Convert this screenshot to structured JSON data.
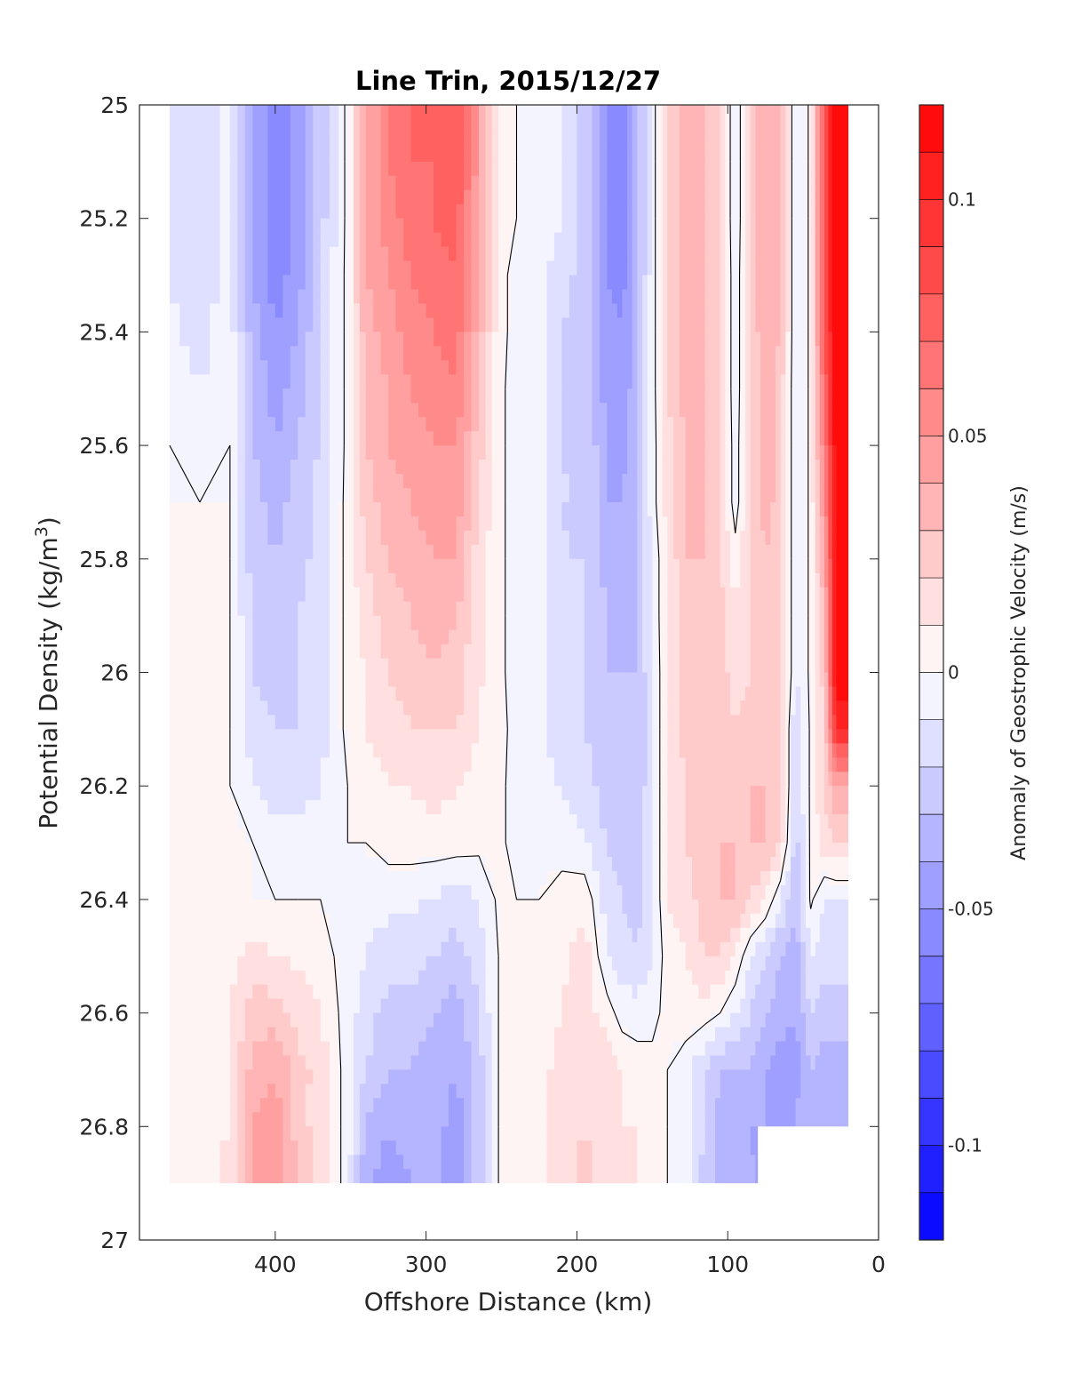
{
  "chart_data": {
    "type": "heatmap",
    "title": "Line Trin, 2015/12/27",
    "xlabel": "Offshore Distance (km)",
    "ylabel_main": "Potential Density (kg/m",
    "ylabel_sup": "3",
    "ylabel_close": ")",
    "colorbar_label": "Anomaly of Geostrophic Velocity (m/s)",
    "xlim": [
      490,
      0
    ],
    "ylim": [
      25,
      27
    ],
    "y_reversed": true,
    "x_ticks": [
      400,
      300,
      200,
      100,
      0
    ],
    "x_tick_labels": [
      "400",
      "300",
      "200",
      "100",
      "0"
    ],
    "y_ticks": [
      25,
      25.2,
      25.4,
      25.6,
      25.8,
      26,
      26.2,
      26.4,
      26.6,
      26.8,
      27
    ],
    "y_tick_labels": [
      "25",
      "25.2",
      "25.4",
      "25.6",
      "25.8",
      "26",
      "26.2",
      "26.4",
      "26.6",
      "26.8",
      "27"
    ],
    "clim": [
      -0.12,
      0.12
    ],
    "colorbar_ticks": [
      0.1,
      0.05,
      0,
      -0.05,
      -0.1
    ],
    "colorbar_tick_labels": [
      "0.1",
      "0.05",
      "0",
      "-0.05",
      "-0.1"
    ],
    "colorbar_levels": 24,
    "zero_contour": true,
    "grid": false,
    "colormap": {
      "negative": "#0000ff",
      "zero": "#ffffff",
      "positive": "#ff0000"
    },
    "x": [
      470,
      450,
      430,
      415,
      400,
      385,
      370,
      352,
      340,
      325,
      310,
      295,
      280,
      265,
      252,
      240,
      225,
      210,
      195,
      180,
      170,
      160,
      150,
      140,
      128,
      115,
      105,
      95,
      85,
      75,
      65,
      55,
      45,
      36,
      28,
      20
    ],
    "y": [
      25,
      25.1,
      25.2,
      25.3,
      25.4,
      25.5,
      25.6,
      25.7,
      25.8,
      25.9,
      26,
      26.1,
      26.2,
      26.3,
      26.4,
      26.5,
      26.6,
      26.7,
      26.8,
      26.9
    ],
    "z": [
      [
        -0.01,
        -0.015,
        -0.005,
        -0.04,
        -0.055,
        -0.045,
        -0.025,
        0.003,
        0.04,
        0.06,
        0.07,
        0.07,
        0.08,
        0.045,
        0.005,
        0.0,
        -0.005,
        -0.01,
        -0.025,
        -0.05,
        -0.055,
        -0.035,
        -0.005,
        0.02,
        0.035,
        0.03,
        0.02,
        -0.01,
        0.02,
        0.04,
        0.03,
        -0.01,
        0.002,
        0.08,
        0.12,
        0.12
      ],
      [
        -0.01,
        -0.02,
        -0.005,
        -0.04,
        -0.055,
        -0.045,
        -0.025,
        0.003,
        0.04,
        0.06,
        0.07,
        0.07,
        0.08,
        0.045,
        0.005,
        0.0,
        -0.005,
        -0.01,
        -0.025,
        -0.05,
        -0.055,
        -0.035,
        -0.005,
        0.02,
        0.035,
        0.03,
        0.02,
        -0.01,
        0.02,
        0.04,
        0.03,
        -0.01,
        0.002,
        0.08,
        0.12,
        0.12
      ],
      [
        -0.01,
        -0.02,
        -0.005,
        -0.04,
        -0.055,
        -0.045,
        -0.025,
        0.003,
        0.04,
        0.055,
        0.065,
        0.07,
        0.075,
        0.04,
        0.005,
        0.0,
        -0.005,
        -0.01,
        -0.025,
        -0.05,
        -0.055,
        -0.035,
        -0.005,
        0.02,
        0.035,
        0.03,
        0.02,
        -0.01,
        0.02,
        0.04,
        0.03,
        -0.01,
        0.002,
        0.08,
        0.12,
        0.12
      ],
      [
        -0.01,
        -0.015,
        -0.005,
        -0.04,
        -0.055,
        -0.045,
        -0.02,
        0.003,
        0.04,
        0.05,
        0.06,
        0.065,
        0.07,
        0.04,
        0.005,
        -0.005,
        -0.008,
        -0.015,
        -0.025,
        -0.05,
        -0.055,
        -0.035,
        -0.005,
        0.02,
        0.035,
        0.03,
        0.02,
        -0.008,
        0.02,
        0.04,
        0.03,
        -0.01,
        0.002,
        0.08,
        0.12,
        0.12
      ],
      [
        -0.008,
        -0.015,
        -0.005,
        -0.035,
        -0.05,
        -0.04,
        -0.02,
        0.003,
        0.035,
        0.045,
        0.055,
        0.06,
        0.065,
        0.035,
        0.005,
        -0.005,
        -0.008,
        -0.02,
        -0.025,
        -0.045,
        -0.05,
        -0.03,
        -0.005,
        0.02,
        0.035,
        0.03,
        0.02,
        -0.008,
        0.02,
        0.04,
        0.03,
        -0.01,
        0.002,
        0.08,
        0.12,
        0.12
      ],
      [
        -0.005,
        -0.01,
        -0.005,
        -0.03,
        -0.045,
        -0.035,
        -0.02,
        0.003,
        0.03,
        0.04,
        0.05,
        0.055,
        0.06,
        0.03,
        0.003,
        -0.005,
        -0.008,
        -0.02,
        -0.025,
        -0.045,
        -0.05,
        -0.03,
        -0.005,
        0.02,
        0.035,
        0.03,
        0.02,
        -0.008,
        0.02,
        0.035,
        0.025,
        -0.01,
        0.002,
        0.07,
        0.12,
        0.12
      ],
      [
        0.0,
        -0.005,
        0.0,
        -0.03,
        -0.04,
        -0.03,
        -0.02,
        0.003,
        0.03,
        0.04,
        0.045,
        0.05,
        0.05,
        0.025,
        0.003,
        -0.005,
        -0.008,
        -0.02,
        -0.02,
        -0.04,
        -0.045,
        -0.03,
        -0.005,
        0.015,
        0.03,
        0.03,
        0.02,
        -0.006,
        0.02,
        0.035,
        0.025,
        -0.01,
        0.002,
        0.06,
        0.12,
        0.12
      ],
      [
        0.0,
        0.0,
        0.0,
        -0.025,
        -0.035,
        -0.025,
        -0.015,
        0.003,
        0.025,
        0.035,
        0.04,
        0.045,
        0.045,
        0.02,
        0.003,
        -0.005,
        -0.008,
        -0.02,
        -0.02,
        -0.04,
        -0.04,
        -0.03,
        -0.005,
        0.015,
        0.03,
        0.03,
        0.02,
        -0.006,
        0.02,
        0.035,
        0.025,
        -0.01,
        0.002,
        0.05,
        0.12,
        0.12
      ],
      [
        0.0,
        0.0,
        0.0,
        -0.025,
        -0.03,
        -0.025,
        -0.015,
        0.003,
        0.02,
        0.03,
        0.035,
        0.04,
        0.04,
        0.015,
        0.003,
        -0.005,
        -0.008,
        -0.02,
        -0.02,
        -0.035,
        -0.04,
        -0.03,
        -0.008,
        0.01,
        0.03,
        0.03,
        0.02,
        0.005,
        0.02,
        0.03,
        0.025,
        -0.01,
        0.002,
        0.04,
        0.12,
        0.12
      ],
      [
        0.0,
        0.0,
        0.0,
        -0.02,
        -0.03,
        -0.02,
        -0.015,
        0.003,
        0.015,
        0.025,
        0.03,
        0.035,
        0.03,
        0.015,
        0.003,
        -0.005,
        -0.008,
        -0.015,
        -0.02,
        -0.03,
        -0.035,
        -0.03,
        -0.008,
        0.01,
        0.025,
        0.03,
        0.025,
        0.01,
        0.02,
        0.03,
        0.025,
        -0.01,
        0.002,
        0.03,
        0.12,
        0.12
      ],
      [
        0.0,
        0.005,
        0.0,
        -0.02,
        -0.025,
        -0.02,
        -0.015,
        0.003,
        0.01,
        0.02,
        0.025,
        0.03,
        0.025,
        0.012,
        0.003,
        -0.005,
        -0.008,
        -0.015,
        -0.02,
        -0.03,
        -0.03,
        -0.03,
        -0.01,
        0.01,
        0.025,
        0.03,
        0.025,
        0.015,
        0.02,
        0.03,
        0.025,
        -0.01,
        0.002,
        0.025,
        0.12,
        0.12
      ],
      [
        0.0,
        0.01,
        0.0,
        -0.015,
        -0.02,
        -0.02,
        -0.015,
        0.003,
        0.01,
        0.015,
        0.02,
        0.02,
        0.02,
        0.01,
        0.003,
        -0.003,
        -0.008,
        -0.015,
        -0.02,
        -0.025,
        -0.03,
        -0.03,
        -0.01,
        0.01,
        0.025,
        0.03,
        0.03,
        0.02,
        0.025,
        0.03,
        0.025,
        -0.02,
        0.002,
        0.02,
        0.1,
        0.1
      ],
      [
        0.0,
        0.01,
        0.0,
        -0.01,
        -0.015,
        -0.015,
        -0.01,
        0.0,
        0.005,
        0.01,
        0.01,
        0.015,
        0.01,
        0.005,
        0.002,
        -0.003,
        -0.008,
        -0.01,
        -0.015,
        -0.025,
        -0.03,
        -0.03,
        -0.01,
        0.01,
        0.02,
        0.025,
        0.03,
        0.025,
        0.03,
        0.03,
        0.025,
        -0.02,
        0.002,
        0.02,
        0.04,
        0.04
      ],
      [
        0.0,
        0.01,
        0.005,
        0.0,
        -0.005,
        -0.005,
        -0.005,
        0.0,
        0.0,
        0.005,
        0.005,
        0.005,
        0.005,
        0.003,
        0.002,
        -0.003,
        -0.003,
        -0.005,
        -0.01,
        -0.02,
        -0.025,
        -0.025,
        -0.01,
        0.01,
        0.02,
        0.025,
        0.03,
        0.03,
        0.03,
        0.03,
        0.02,
        -0.025,
        0.002,
        0.015,
        0.02,
        0.02
      ],
      [
        0.0,
        0.008,
        0.005,
        0.0,
        0.0,
        0.0,
        0.0,
        -0.003,
        -0.005,
        -0.008,
        -0.008,
        -0.01,
        -0.015,
        -0.01,
        0.002,
        0.0,
        0.0,
        0.005,
        0.008,
        -0.015,
        -0.02,
        -0.025,
        -0.01,
        0.01,
        0.015,
        0.025,
        0.03,
        0.03,
        0.02,
        0.01,
        -0.01,
        -0.03,
        0.002,
        -0.01,
        -0.01,
        -0.01
      ],
      [
        0.0,
        0.005,
        0.005,
        0.015,
        0.01,
        0.008,
        0.005,
        -0.005,
        -0.01,
        -0.015,
        -0.015,
        -0.02,
        -0.025,
        -0.015,
        0.0,
        0.005,
        0.005,
        0.008,
        0.015,
        -0.01,
        -0.015,
        -0.02,
        -0.01,
        0.005,
        0.01,
        0.02,
        0.02,
        0.01,
        -0.01,
        -0.02,
        -0.03,
        -0.035,
        -0.01,
        -0.015,
        -0.015,
        -0.015
      ],
      [
        0.0,
        0.005,
        0.01,
        0.025,
        0.025,
        0.015,
        0.01,
        -0.005,
        -0.015,
        -0.025,
        -0.025,
        -0.03,
        -0.035,
        -0.02,
        0.0,
        0.005,
        0.005,
        0.01,
        0.015,
        0.005,
        -0.005,
        -0.005,
        -0.003,
        0.003,
        0.005,
        0.005,
        0.0,
        -0.01,
        -0.02,
        -0.03,
        -0.035,
        -0.04,
        -0.02,
        -0.025,
        -0.025,
        -0.025
      ],
      [
        0.0,
        0.005,
        0.01,
        0.035,
        0.04,
        0.025,
        0.015,
        -0.005,
        -0.02,
        -0.03,
        -0.03,
        -0.035,
        -0.04,
        -0.025,
        0.0,
        0.003,
        0.005,
        0.015,
        0.02,
        0.015,
        0.01,
        0.005,
        0.003,
        0.0,
        -0.005,
        -0.02,
        -0.03,
        -0.03,
        -0.03,
        -0.04,
        -0.045,
        -0.045,
        -0.03,
        -0.035,
        -0.035,
        -0.035
      ],
      [
        0.0,
        0.005,
        0.01,
        0.04,
        0.045,
        0.025,
        0.015,
        -0.005,
        -0.03,
        -0.04,
        -0.035,
        -0.035,
        -0.045,
        -0.025,
        0.0,
        0.005,
        0.005,
        0.015,
        0.02,
        0.015,
        0.01,
        0.01,
        0.005,
        0.0,
        -0.005,
        -0.02,
        -0.035,
        -0.03,
        -0.04,
        -0.04,
        -0.04,
        -0.04,
        -0.03,
        -0.035,
        -0.04,
        -0.04
      ],
      [
        0.0,
        0.005,
        0.015,
        0.045,
        0.05,
        0.03,
        0.015,
        -0.005,
        -0.04,
        -0.045,
        -0.04,
        -0.035,
        -0.045,
        -0.025,
        0.0,
        0.01,
        0.005,
        0.015,
        0.025,
        0.015,
        0.01,
        0.01,
        0.005,
        0.0,
        -0.005,
        -0.025,
        -0.035,
        -0.03,
        -0.04,
        -0.04,
        -0.04,
        -0.04,
        -0.03,
        -0.035,
        -0.04,
        -0.04
      ]
    ],
    "missing_regions": [
      {
        "x_from": 490,
        "x_to": 0,
        "y_from": 26.9,
        "y_to": 27
      },
      {
        "x_from": 80,
        "x_to": 0,
        "y_from": 26.8,
        "y_to": 27
      },
      {
        "x_from": 20,
        "x_to": 0,
        "y_from": 25.0,
        "y_to": 27
      }
    ]
  }
}
